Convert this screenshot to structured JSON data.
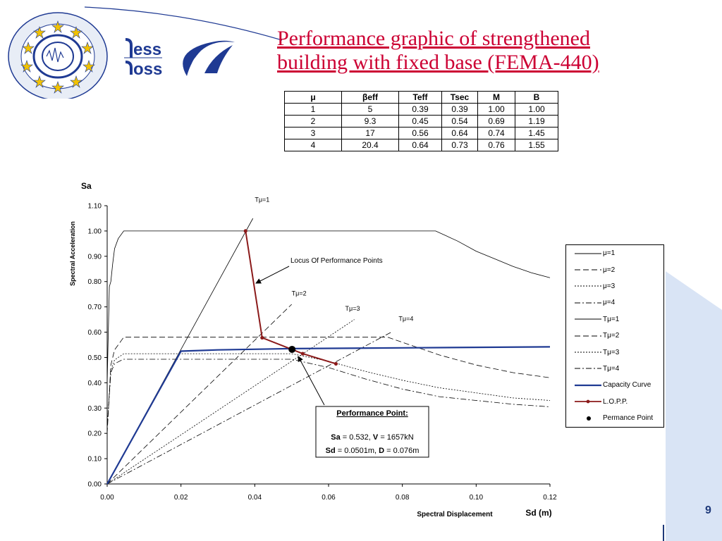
{
  "logo": {
    "word_top": "ess",
    "word_bottom": "oss"
  },
  "title": {
    "line1": "Performance graphic of strengthened",
    "line2": "building with fixed base (FEMA-440)"
  },
  "table": {
    "headers": [
      "μ",
      "βeff",
      "Teff",
      "Tsec",
      "M",
      "B"
    ],
    "rows": [
      [
        "1",
        "5",
        "0.39",
        "0.39",
        "1.00",
        "1.00"
      ],
      [
        "2",
        "9.3",
        "0.45",
        "0.54",
        "0.69",
        "1.19"
      ],
      [
        "3",
        "17",
        "0.56",
        "0.64",
        "0.74",
        "1.45"
      ],
      [
        "4",
        "20.4",
        "0.64",
        "0.73",
        "0.76",
        "1.55"
      ]
    ]
  },
  "chart_data": {
    "type": "line",
    "top_label": "Sa",
    "xlabel": "Spectral Displacement",
    "xunit": "Sd (m)",
    "ylabel": "Spectral Acceleration",
    "xlim": [
      0,
      0.12
    ],
    "ylim": [
      0,
      1.1
    ],
    "xticks": [
      "0.00",
      "0.02",
      "0.04",
      "0.06",
      "0.08",
      "0.10",
      "0.12"
    ],
    "yticks": [
      "0.00",
      "0.10",
      "0.20",
      "0.30",
      "0.40",
      "0.50",
      "0.60",
      "0.70",
      "0.80",
      "0.90",
      "1.00",
      "1.10"
    ],
    "grid": false,
    "legend_position": "right",
    "series": [
      {
        "name": "μ=1",
        "color": "#000000",
        "dash": "",
        "width": 0.8,
        "x": [
          0,
          0.0003,
          0.0006,
          0.001,
          0.0015,
          0.002,
          0.003,
          0.0045,
          0.0055,
          0.07,
          0.089,
          0.095,
          0.1,
          0.105,
          0.11,
          0.115,
          0.12
        ],
        "y": [
          0.4,
          0.6,
          0.78,
          0.8,
          0.87,
          0.93,
          0.97,
          1.0,
          1.0,
          1.0,
          1.0,
          0.96,
          0.92,
          0.89,
          0.86,
          0.835,
          0.815
        ]
      },
      {
        "name": "μ=2",
        "color": "#000000",
        "dash": "8,4",
        "width": 0.8,
        "x": [
          0,
          0.001,
          0.002,
          0.004,
          0.0045,
          0.076,
          0.08,
          0.09,
          0.1,
          0.11,
          0.12
        ],
        "y": [
          0.2,
          0.47,
          0.53,
          0.57,
          0.58,
          0.58,
          0.56,
          0.51,
          0.47,
          0.44,
          0.42
        ]
      },
      {
        "name": "μ=3",
        "color": "#000000",
        "dash": "2,2",
        "width": 0.8,
        "x": [
          0,
          0.001,
          0.002,
          0.004,
          0.0045,
          0.05,
          0.06,
          0.07,
          0.08,
          0.09,
          0.1,
          0.11,
          0.12
        ],
        "y": [
          0.22,
          0.45,
          0.49,
          0.51,
          0.515,
          0.515,
          0.485,
          0.445,
          0.41,
          0.38,
          0.36,
          0.34,
          0.33
        ]
      },
      {
        "name": "μ=4",
        "color": "#000000",
        "dash": "8,3,2,3",
        "width": 0.8,
        "x": [
          0,
          0.001,
          0.002,
          0.004,
          0.0045,
          0.05,
          0.06,
          0.07,
          0.08,
          0.09,
          0.1,
          0.11,
          0.12
        ],
        "y": [
          0.22,
          0.44,
          0.475,
          0.49,
          0.493,
          0.493,
          0.46,
          0.415,
          0.375,
          0.345,
          0.33,
          0.315,
          0.305
        ]
      },
      {
        "name": "Tμ=1",
        "color": "#000000",
        "dash": "",
        "width": 0.8,
        "x": [
          0,
          0.0395
        ],
        "y": [
          0,
          1.05
        ]
      },
      {
        "name": "Tμ=2",
        "color": "#000000",
        "dash": "8,4",
        "width": 0.8,
        "x": [
          0,
          0.05
        ],
        "y": [
          0,
          0.71
        ]
      },
      {
        "name": "Tμ=3",
        "color": "#000000",
        "dash": "2,2",
        "width": 0.8,
        "x": [
          0,
          0.067
        ],
        "y": [
          0,
          0.65
        ]
      },
      {
        "name": "Tμ=4",
        "color": "#000000",
        "dash": "8,3,2,3",
        "width": 0.8,
        "x": [
          0,
          0.077
        ],
        "y": [
          0,
          0.6
        ]
      },
      {
        "name": "Capacity Curve",
        "color": "#1f3a93",
        "dash": "",
        "width": 2.2,
        "x": [
          0,
          0.02,
          0.03,
          0.05,
          0.08,
          0.12
        ],
        "y": [
          0,
          0.525,
          0.53,
          0.535,
          0.538,
          0.542
        ]
      },
      {
        "name": "L.O.P.P.",
        "color": "#8b1a1a",
        "dash": "",
        "width": 2,
        "marker": "dot",
        "x": [
          0.0375,
          0.042,
          0.053,
          0.062
        ],
        "y": [
          1.0,
          0.578,
          0.515,
          0.475
        ]
      },
      {
        "name": "Permance Point",
        "color": "#000000",
        "marker": "big-dot",
        "x": [
          0.0501
        ],
        "y": [
          0.532
        ]
      }
    ],
    "annotations": {
      "tmu_labels": [
        {
          "text": "Tμ=1",
          "x": 0.04,
          "y": 1.115
        },
        {
          "text": "Tμ=2",
          "x": 0.05,
          "y": 0.745
        },
        {
          "text": "Tμ=3",
          "x": 0.0645,
          "y": 0.685
        },
        {
          "text": "Tμ=4",
          "x": 0.079,
          "y": 0.645
        }
      ],
      "locus_label": "Locus Of Performance Points",
      "pp_title": "Performance Point:",
      "pp_sa_label": "Sa",
      "pp_sa_rest": " = 0.532, ",
      "pp_v_label": "V",
      "pp_v_rest": " = 1657kN",
      "pp_sd_label": "Sd",
      "pp_sd_rest": " = 0.0501m, ",
      "pp_d_label": "D",
      "pp_d_rest": " = 0.076m"
    }
  },
  "legend_items": [
    {
      "label": "μ=1",
      "type": "line",
      "dash": "",
      "color": "#000000"
    },
    {
      "label": "μ=2",
      "type": "line",
      "dash": "8,4",
      "color": "#000000"
    },
    {
      "label": "μ=3",
      "type": "line",
      "dash": "2,2",
      "color": "#000000"
    },
    {
      "label": "μ=4",
      "type": "line",
      "dash": "8,3,2,3",
      "color": "#000000"
    },
    {
      "label": "Tμ=1",
      "type": "line",
      "dash": "",
      "color": "#000000"
    },
    {
      "label": "Tμ=2",
      "type": "line",
      "dash": "8,4",
      "color": "#000000"
    },
    {
      "label": "Tμ=3",
      "type": "line",
      "dash": "2,2",
      "color": "#000000"
    },
    {
      "label": "Tμ=4",
      "type": "line",
      "dash": "8,3,2,3",
      "color": "#000000"
    },
    {
      "label": "Capacity Curve",
      "type": "thick",
      "dash": "",
      "color": "#1f3a93"
    },
    {
      "label": "L.O.P.P.",
      "type": "line-dot",
      "dash": "",
      "color": "#8b1a1a"
    },
    {
      "label": "Permance Point",
      "type": "dot",
      "dash": "",
      "color": "#000000"
    }
  ],
  "page_number": "9",
  "colors": {
    "title": "#cc0033",
    "accent": "#1f3a93",
    "lopp": "#8b1a1a"
  }
}
